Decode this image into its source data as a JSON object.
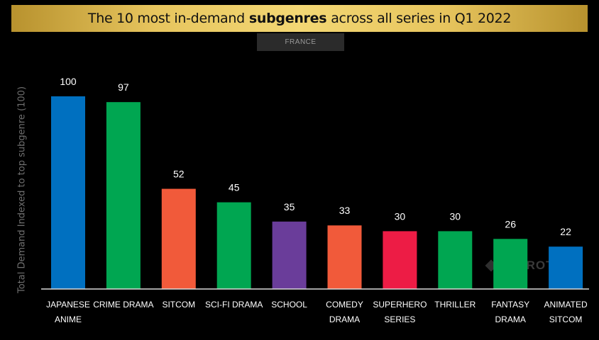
{
  "header": {
    "title_prefix": "The 10 most in-demand",
    "title_bold": "subgenres",
    "title_suffix": "across all series in Q1 2022"
  },
  "region_tab": "FRANCE",
  "watermark": "PARROT",
  "chart_data": {
    "type": "bar",
    "title": "The 10 most in-demand subgenres across all series in Q1 2022",
    "ylabel": "Total Demand Indexed to top subgenre (100)",
    "xlabel": "",
    "ylim": [
      0,
      100
    ],
    "grid": false,
    "categories": [
      [
        "JAPANESE",
        "ANIME"
      ],
      [
        "CRIME DRAMA"
      ],
      [
        "SITCOM"
      ],
      [
        "SCI-FI DRAMA"
      ],
      [
        "SCHOOL"
      ],
      [
        "COMEDY",
        "DRAMA"
      ],
      [
        "SUPERHERO",
        "SERIES"
      ],
      [
        "THRILLER"
      ],
      [
        "FANTASY",
        "DRAMA"
      ],
      [
        "ANIMATED",
        "SITCOM"
      ]
    ],
    "values": [
      100,
      97,
      52,
      45,
      35,
      33,
      30,
      30,
      26,
      22
    ],
    "colors": [
      "#0070c0",
      "#00a651",
      "#f15a3a",
      "#00a651",
      "#6a3d9a",
      "#f15a3a",
      "#ed1c45",
      "#00a651",
      "#00a651",
      "#0070c0"
    ]
  }
}
